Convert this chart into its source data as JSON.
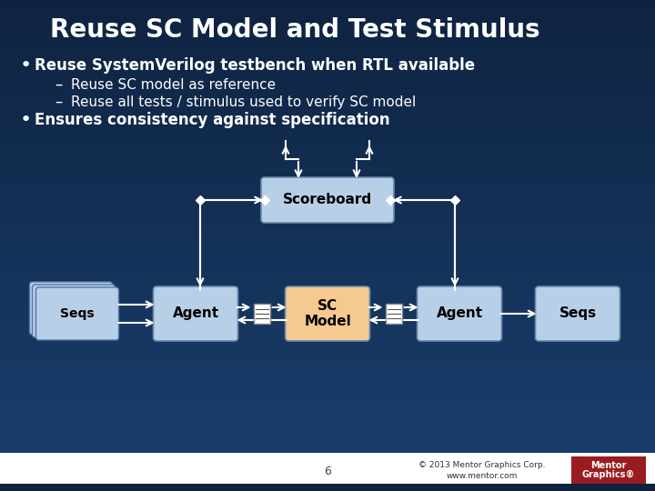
{
  "title": "Reuse SC Model and Test Stimulus",
  "bg_top": "#0e2340",
  "bg_bottom": "#1a3f6f",
  "title_color": "#ffffff",
  "bullet1": "Reuse SystemVerilog testbench when RTL available",
  "sub1": "Reuse SC model as reference",
  "sub2": "Reuse all tests / stimulus used to verify SC model",
  "bullet2": "Ensures consistency against specification",
  "footer_copy": "© 2013 Mentor Graphics Corp.",
  "footer_url": "www.mentor.com",
  "page_num": "6",
  "box_blue": "#b8cfe8",
  "box_blue_dark": "#8aafd0",
  "box_orange": "#f5c990",
  "scoreboard_label": "Scoreboard",
  "sc_model_label": "SC\nModel",
  "agent_label": "Agent",
  "seqs_label": "Seqs",
  "white": "#ffffff",
  "footer_bg": "#ffffff",
  "footer_bar_bg": "#1a3a5c",
  "mentor_red": "#9b1c20"
}
